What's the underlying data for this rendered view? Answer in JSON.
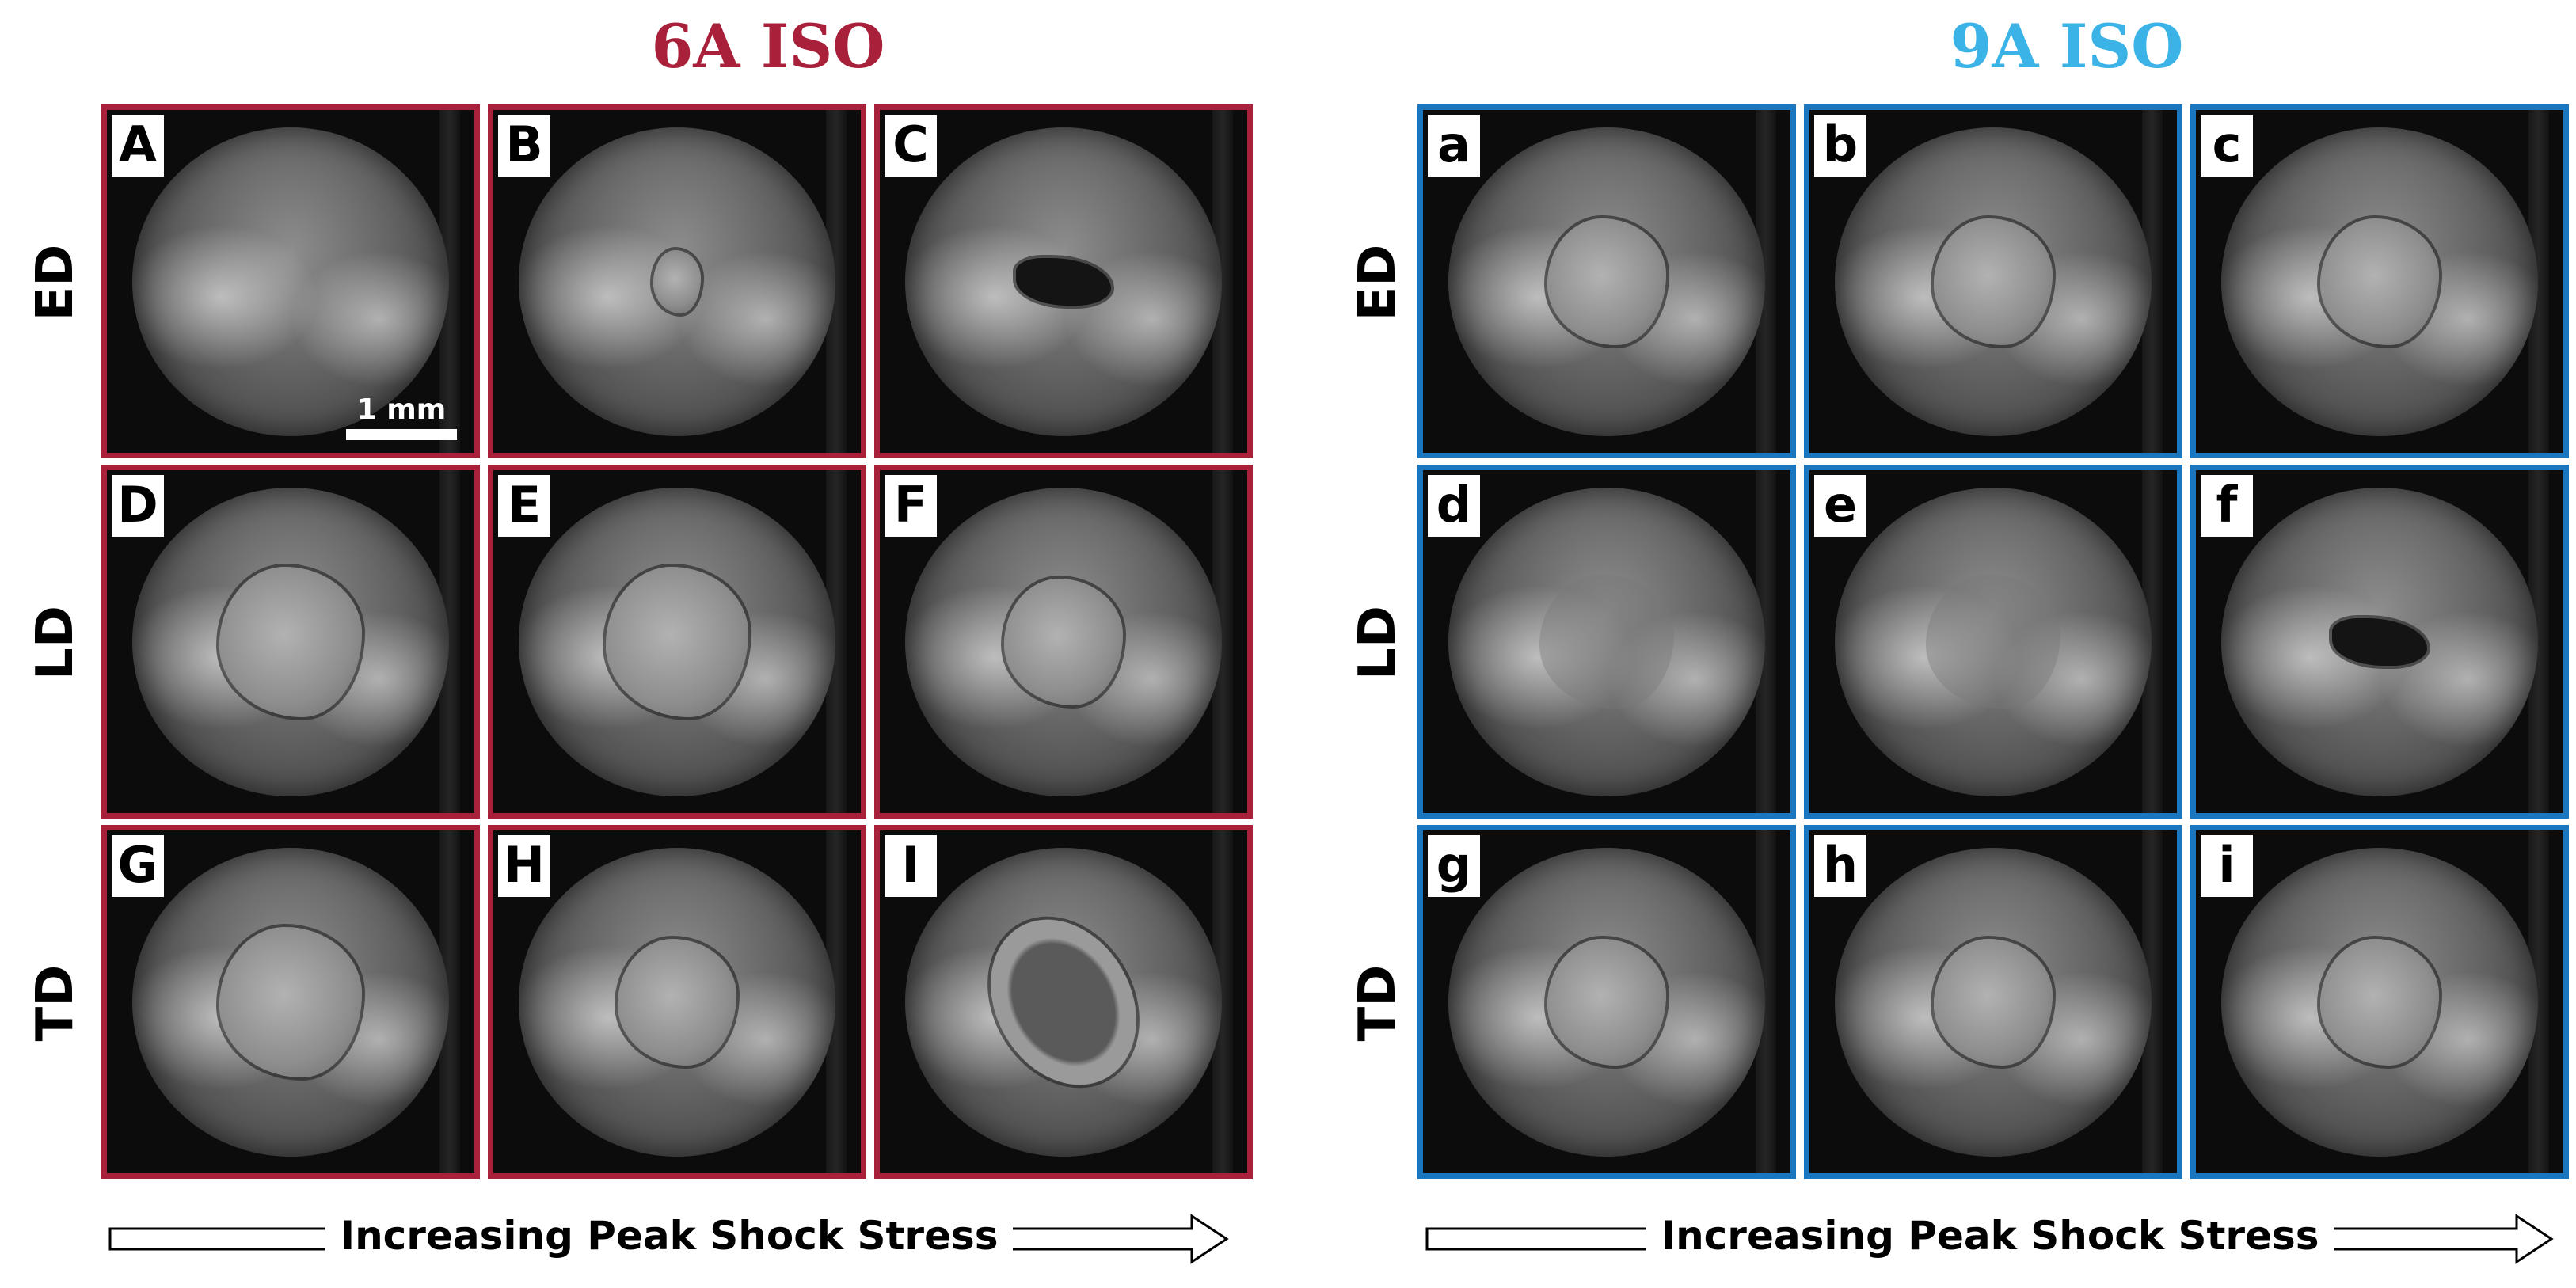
{
  "groups": [
    {
      "title": "6A ISO",
      "title_color": "#a8203a",
      "border_color": "#a8203a",
      "rows": [
        "ED",
        "LD",
        "TD"
      ],
      "panels": [
        {
          "label": "A",
          "damage": "none"
        },
        {
          "label": "B",
          "damage": "small"
        },
        {
          "label": "C",
          "damage": "crack"
        },
        {
          "label": "D",
          "damage": "large"
        },
        {
          "label": "E",
          "damage": "large"
        },
        {
          "label": "F",
          "damage": "med"
        },
        {
          "label": "G",
          "damage": "large"
        },
        {
          "label": "H",
          "damage": "med"
        },
        {
          "label": "I",
          "damage": "ring"
        }
      ],
      "scale_bar": "1 mm",
      "arrow_label": "Increasing Peak Shock Stress"
    },
    {
      "title": "9A ISO",
      "title_color": "#3bb3e6",
      "border_color": "#1a77bf",
      "rows": [
        "ED",
        "LD",
        "TD"
      ],
      "panels": [
        {
          "label": "a",
          "damage": "med"
        },
        {
          "label": "b",
          "damage": "med"
        },
        {
          "label": "c",
          "damage": "med"
        },
        {
          "label": "d",
          "damage": "faint"
        },
        {
          "label": "e",
          "damage": "faint"
        },
        {
          "label": "f",
          "damage": "crack"
        },
        {
          "label": "g",
          "damage": "med"
        },
        {
          "label": "h",
          "damage": "med"
        },
        {
          "label": "i",
          "damage": "med"
        }
      ],
      "arrow_label": "Increasing Peak Shock Stress"
    }
  ]
}
